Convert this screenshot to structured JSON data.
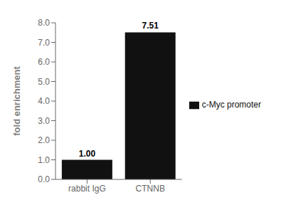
{
  "chart_data": {
    "type": "bar",
    "categories": [
      "rabbit IgG",
      "CTNNB"
    ],
    "series": [
      {
        "name": "c-Myc promoter",
        "color": "#111111",
        "values": [
          1.0,
          7.51
        ],
        "value_labels": [
          "1.00",
          "7.51"
        ]
      }
    ],
    "ylabel": "fold enrichment",
    "ylim": [
      0,
      8.0
    ],
    "yticks": [
      {
        "value": 0,
        "label": "0.0"
      },
      {
        "value": 1,
        "label": "1.0"
      },
      {
        "value": 2,
        "label": "2.0"
      },
      {
        "value": 3,
        "label": "3.0"
      },
      {
        "value": 4,
        "label": "4.0"
      },
      {
        "value": 5,
        "label": "5.0"
      },
      {
        "value": 6,
        "label": "6.0"
      },
      {
        "value": 7,
        "label": "7.0"
      },
      {
        "value": 8,
        "label": "8.0"
      }
    ],
    "data_labels": true,
    "legend": "right",
    "grid": false
  }
}
